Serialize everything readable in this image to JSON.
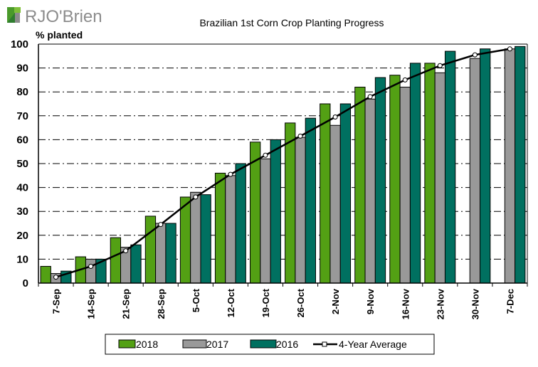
{
  "logo": {
    "text": "RJO'Brien"
  },
  "chart_data": {
    "type": "bar",
    "title": "Brazilian 1st Corn Crop Planting Progress",
    "xlabel": "",
    "ylabel": "% planted",
    "ylim": [
      0,
      100
    ],
    "yticks": [
      0,
      10,
      20,
      30,
      40,
      50,
      60,
      70,
      80,
      90,
      100
    ],
    "grid": true,
    "categories": [
      "7-Sep",
      "14-Sep",
      "21-Sep",
      "28-Sep",
      "5-Oct",
      "12-Oct",
      "19-Oct",
      "26-Oct",
      "2-Nov",
      "9-Nov",
      "16-Nov",
      "23-Nov",
      "30-Nov",
      "7-Dec"
    ],
    "series": [
      {
        "name": "2018",
        "type": "bar",
        "color": "#53a014",
        "values": [
          7,
          11,
          19,
          28,
          36,
          46,
          59,
          67,
          75,
          82,
          87,
          92,
          null,
          null
        ]
      },
      {
        "name": "2017",
        "type": "bar",
        "color": "#999999",
        "values": [
          4,
          10,
          15,
          25,
          38,
          45,
          52,
          61,
          66,
          77,
          82,
          88,
          94,
          98
        ]
      },
      {
        "name": "2016",
        "type": "bar",
        "color": "#007060",
        "values": [
          5,
          10,
          16,
          25,
          37,
          50,
          60,
          69,
          75,
          86,
          92,
          97,
          98,
          99
        ]
      },
      {
        "name": "4-Year Average",
        "type": "line",
        "color": "#000000",
        "values": [
          2.5,
          7,
          13.5,
          24.5,
          36,
          45.5,
          53.5,
          61.5,
          69.5,
          78,
          85,
          91,
          95.5,
          98
        ]
      }
    ],
    "legend": {
      "position": "bottom",
      "entries": [
        "2018",
        "2017",
        "2016",
        "4-Year Average"
      ]
    }
  }
}
